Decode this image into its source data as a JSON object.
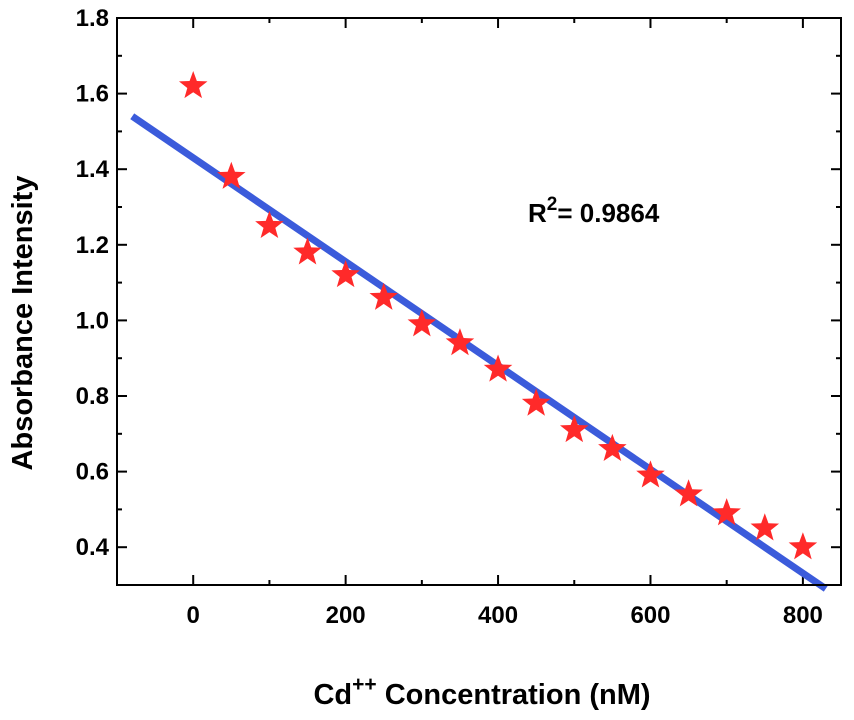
{
  "chart_data": {
    "type": "scatter",
    "xlabel": "Cd",
    "xlabel_sup": "++",
    "xlabel_rest": " Concentration (nM)",
    "ylabel": "Absorbance Intensity",
    "xlim": [
      -100,
      850
    ],
    "ylim": [
      0.3,
      1.8
    ],
    "xticks": [
      0,
      200,
      400,
      600,
      800
    ],
    "yticks": [
      0.4,
      0.6,
      0.8,
      1.0,
      1.2,
      1.4,
      1.6,
      1.8
    ],
    "xtick_labels": [
      "0",
      "200",
      "400",
      "600",
      "800"
    ],
    "ytick_labels": [
      "0.4",
      "0.6",
      "0.8",
      "1.0",
      "1.2",
      "1.4",
      "1.6",
      "1.8"
    ],
    "series": [
      {
        "marker": "star",
        "color": "#ff2a2a",
        "x": [
          0,
          50,
          100,
          150,
          200,
          250,
          300,
          350,
          400,
          450,
          500,
          550,
          600,
          650,
          700,
          750,
          800
        ],
        "y": [
          1.62,
          1.38,
          1.25,
          1.18,
          1.12,
          1.06,
          0.99,
          0.94,
          0.87,
          0.78,
          0.71,
          0.66,
          0.59,
          0.54,
          0.49,
          0.45,
          0.4
        ]
      }
    ],
    "fit_line": {
      "color": "#3b5bdb",
      "x": [
        -80,
        830
      ],
      "y": [
        1.54,
        0.29
      ]
    },
    "annotation": {
      "text_base": "R",
      "text_sup": "2",
      "text_rest": "= 0.9864"
    }
  }
}
